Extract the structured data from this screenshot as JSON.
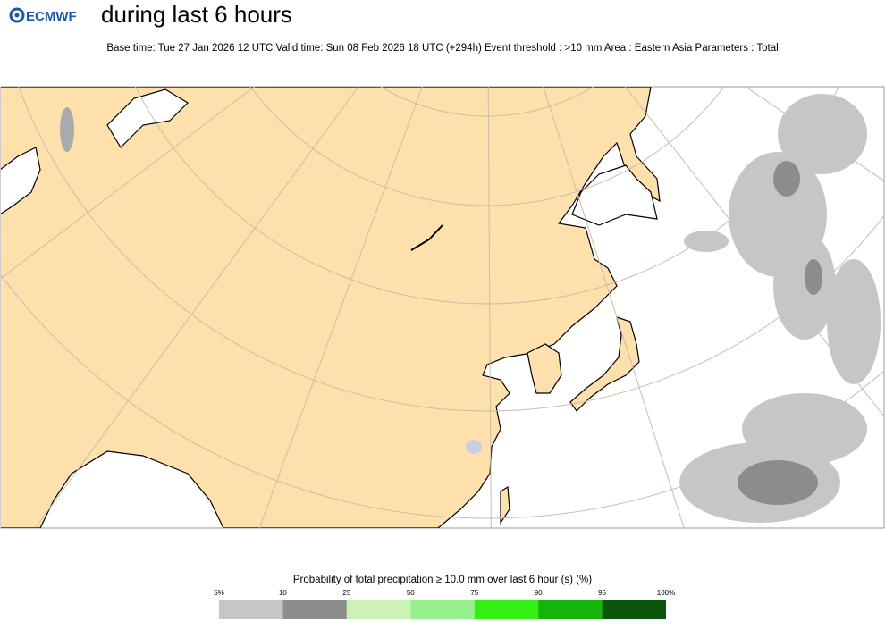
{
  "header": {
    "logo": "ECMWF",
    "title": "during last 6 hours",
    "subtitle": "Base time: Tue 27 Jan 2026 12 UTC Valid time: Sun 08 Feb 2026 18 UTC (+294h) Event threshold : >10 mm Area : Eastern Asia Parameters : Total"
  },
  "legend": {
    "title": "Probability of total precipitation ≥ 10.0 mm over last 6 hour (s) (%)",
    "labels": [
      "5%",
      "10",
      "25",
      "50",
      "75",
      "90",
      "95",
      "100%"
    ],
    "colors": [
      "#c6c6c6",
      "#8c8c8c",
      "#cdf2b8",
      "#96f08c",
      "#32f014",
      "#14b40a",
      "#0a560a"
    ]
  }
}
